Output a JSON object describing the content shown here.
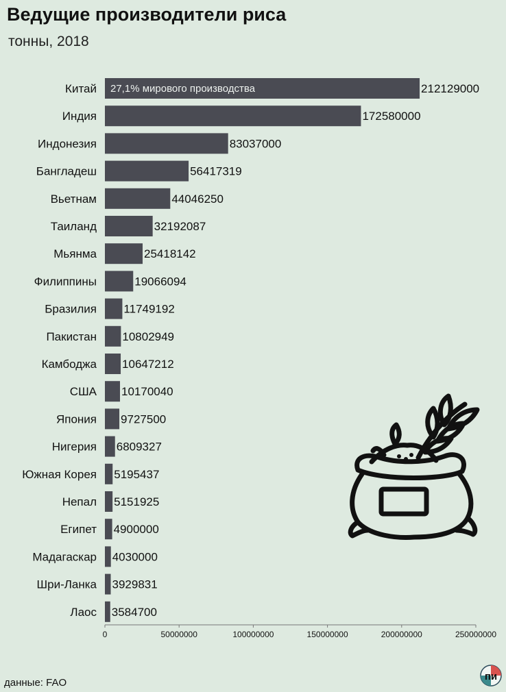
{
  "header": {
    "title": "Ведущие производители риса",
    "subtitle": "тонны, 2018"
  },
  "footer": {
    "source": "данные: FAO",
    "logo_text": "пи"
  },
  "illustration": {
    "icon": "rice-sack-icon"
  },
  "chart_data": {
    "type": "bar",
    "orientation": "horizontal",
    "categories": [
      "Китай",
      "Индия",
      "Индонезия",
      "Бангладеш",
      "Вьетнам",
      "Таиланд",
      "Мьянма",
      "Филиппины",
      "Бразилия",
      "Пакистан",
      "Камбоджа",
      "США",
      "Япония",
      "Нигерия",
      "Южная Корея",
      "Непал",
      "Египет",
      "Мадагаскар",
      "Шри-Ланка",
      "Лаос"
    ],
    "values": [
      212129000,
      172580000,
      83037000,
      56417319,
      44046250,
      32192087,
      25418142,
      19066094,
      11749192,
      10802949,
      10647212,
      10170040,
      9727500,
      6809327,
      5195437,
      5151925,
      4900000,
      4030000,
      3929831,
      3584700
    ],
    "value_labels": [
      "212129000",
      "172580000",
      "83037000",
      "56417319",
      "44046250",
      "32192087",
      "25418142",
      "19066094",
      "11749192",
      "10802949",
      "10647212",
      "10170040",
      "9727500",
      "6809327",
      "5195437",
      "5151925",
      "4900000",
      "4030000",
      "3929831",
      "3584700"
    ],
    "xlim": [
      0,
      250000000
    ],
    "xticks": [
      0,
      50000000,
      100000000,
      150000000,
      200000000,
      250000000
    ],
    "xtick_labels": [
      "0",
      "50000000",
      "100000000",
      "150000000",
      "200000000",
      "250000000"
    ],
    "annotation": {
      "category": "Китай",
      "text": "27,1% мирового производства"
    },
    "bar_color": "#4a4b53",
    "grid": false,
    "legend": "none"
  }
}
